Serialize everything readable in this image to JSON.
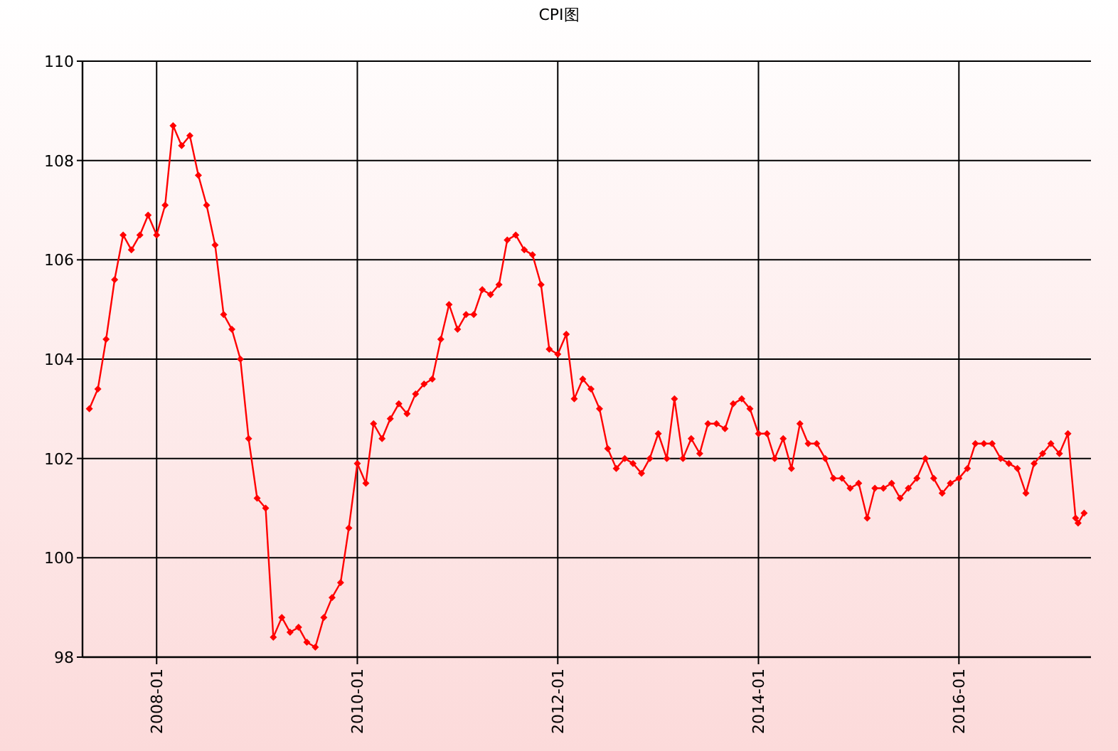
{
  "chart_data": {
    "type": "line",
    "title": "CPI图",
    "x": [
      "2007-05",
      "2007-06",
      "2007-07",
      "2007-08",
      "2007-09",
      "2007-10",
      "2007-11",
      "2007-12",
      "2008-01",
      "2008-02",
      "2008-03",
      "2008-04",
      "2008-05",
      "2008-06",
      "2008-07",
      "2008-08",
      "2008-09",
      "2008-10",
      "2008-11",
      "2008-12",
      "2009-01",
      "2009-02",
      "2009-03",
      "2009-04",
      "2009-05",
      "2009-06",
      "2009-07",
      "2009-08",
      "2009-09",
      "2009-10",
      "2009-11",
      "2009-12",
      "2010-01",
      "2010-02",
      "2010-03",
      "2010-04",
      "2010-05",
      "2010-06",
      "2010-07",
      "2010-08",
      "2010-09",
      "2010-10",
      "2010-11",
      "2010-12",
      "2011-01",
      "2011-02",
      "2011-03",
      "2011-04",
      "2011-05",
      "2011-06",
      "2011-07",
      "2011-08",
      "2011-09",
      "2011-10",
      "2011-11",
      "2011-12",
      "2012-01",
      "2012-02",
      "2012-03",
      "2012-04",
      "2012-05",
      "2012-06",
      "2012-07",
      "2012-08",
      "2012-09",
      "2012-10",
      "2012-11",
      "2012-12",
      "2013-01",
      "2013-02",
      "2013-03",
      "2013-04",
      "2013-05",
      "2013-06",
      "2013-07",
      "2013-08",
      "2013-09",
      "2013-10",
      "2013-11",
      "2013-12",
      "2014-01",
      "2014-02",
      "2014-03",
      "2014-04",
      "2014-05",
      "2014-06",
      "2014-07",
      "2014-08",
      "2014-09",
      "2014-10",
      "2014-11",
      "2014-12",
      "2015-01",
      "2015-02",
      "2015-03",
      "2015-04",
      "2015-05",
      "2015-06",
      "2015-07",
      "2015-08",
      "2015-09",
      "2015-10",
      "2015-11",
      "2015-12",
      "2016-01",
      "2016-02",
      "2016-03",
      "2016-04",
      "2016-05",
      "2016-06",
      "2016-07",
      "2016-08",
      "2016-09",
      "2016-10",
      "2016-11",
      "2016-12",
      "2017-01",
      "2017-02",
      "2017-03",
      "2017-03-10",
      "2017-04"
    ],
    "series": [
      {
        "color": "#ff0000",
        "values": [
          103.0,
          103.4,
          104.4,
          105.6,
          106.5,
          106.2,
          106.5,
          106.9,
          106.5,
          107.1,
          108.7,
          108.3,
          108.5,
          107.7,
          107.1,
          106.3,
          104.9,
          104.6,
          104.0,
          102.4,
          101.2,
          101.0,
          98.4,
          98.8,
          98.5,
          98.6,
          98.3,
          98.2,
          98.8,
          99.2,
          99.5,
          100.6,
          101.9,
          101.5,
          102.7,
          102.4,
          102.8,
          103.1,
          102.9,
          103.3,
          103.5,
          103.6,
          104.4,
          105.1,
          104.6,
          104.9,
          104.9,
          105.4,
          105.3,
          105.5,
          106.4,
          106.5,
          106.2,
          106.1,
          105.5,
          104.2,
          104.1,
          104.5,
          103.2,
          103.6,
          103.4,
          103.0,
          102.2,
          101.8,
          102.0,
          101.9,
          101.7,
          102.0,
          102.5,
          102.0,
          103.2,
          102.0,
          102.4,
          102.1,
          102.7,
          102.7,
          102.6,
          103.1,
          103.2,
          103.0,
          102.5,
          102.5,
          102.0,
          102.4,
          101.8,
          102.7,
          102.3,
          102.3,
          102.0,
          101.6,
          101.6,
          101.4,
          101.5,
          100.8,
          101.4,
          101.4,
          101.5,
          101.2,
          101.4,
          101.6,
          102.0,
          101.6,
          101.3,
          101.5,
          101.6,
          101.8,
          102.3,
          102.3,
          102.3,
          102.0,
          101.9,
          101.8,
          101.3,
          101.9,
          102.1,
          102.3,
          102.1,
          102.5,
          100.8,
          100.7,
          100.9
        ]
      }
    ],
    "xlim": [
      "2007-04-06",
      "2017-04-26"
    ],
    "xticks": [
      "2008-01",
      "2010-01",
      "2012-01",
      "2014-01",
      "2016-01"
    ],
    "ylim": [
      98,
      110
    ],
    "yticks": [
      98,
      100,
      102,
      104,
      106,
      108,
      110
    ],
    "grid": true,
    "marker": "diamond",
    "line_style": "solid"
  }
}
